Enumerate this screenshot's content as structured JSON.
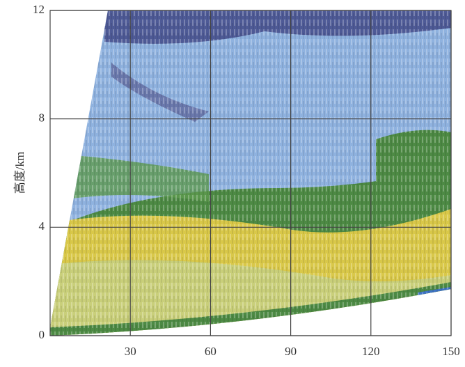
{
  "chart_data": {
    "type": "radar-rhi",
    "y_label": "高度/km",
    "xlim": [
      0,
      150
    ],
    "xticks": [
      30,
      60,
      90,
      120,
      150
    ],
    "ylim": [
      0,
      12
    ],
    "yticks": [
      0,
      4,
      8,
      12
    ],
    "grid": true
  }
}
